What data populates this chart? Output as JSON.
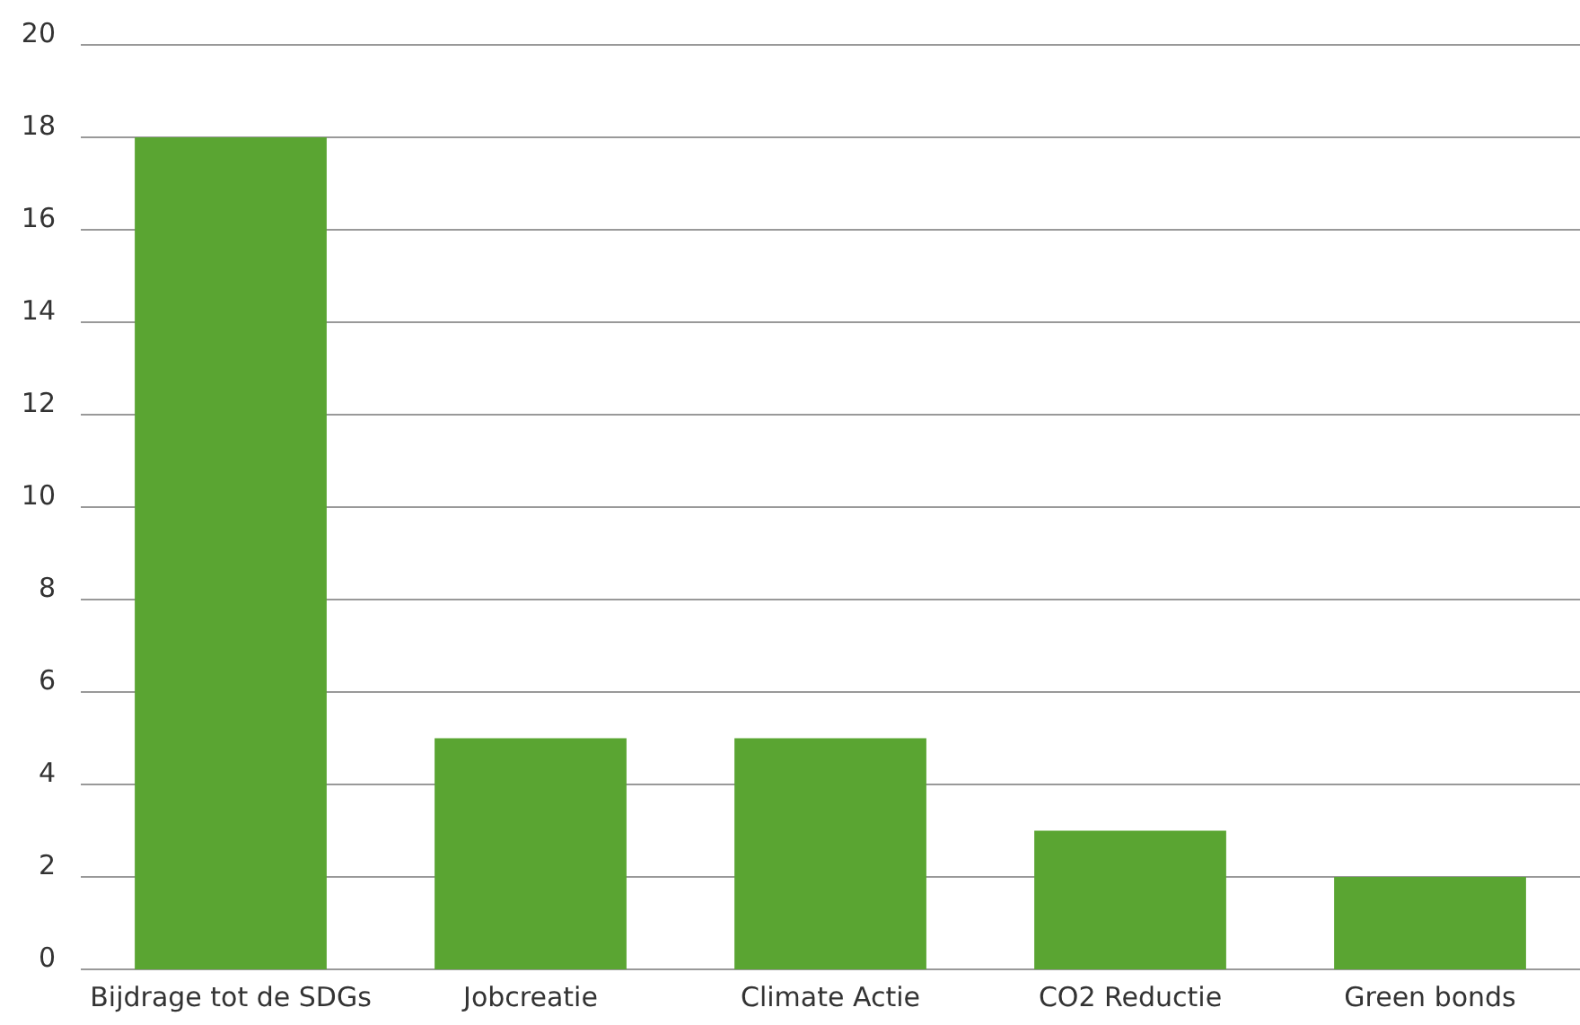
{
  "chart_data": {
    "type": "bar",
    "categories": [
      "Bijdrage tot de SDGs",
      "Jobcreatie",
      "Climate Actie",
      "CO2 Reductie",
      "Green bonds"
    ],
    "values": [
      18,
      5,
      5,
      3,
      2
    ],
    "color": "#5aa532",
    "ylim": [
      0,
      20
    ],
    "yticks": [
      0,
      2,
      4,
      6,
      8,
      10,
      12,
      14,
      16,
      18,
      20
    ],
    "grid": "y"
  }
}
